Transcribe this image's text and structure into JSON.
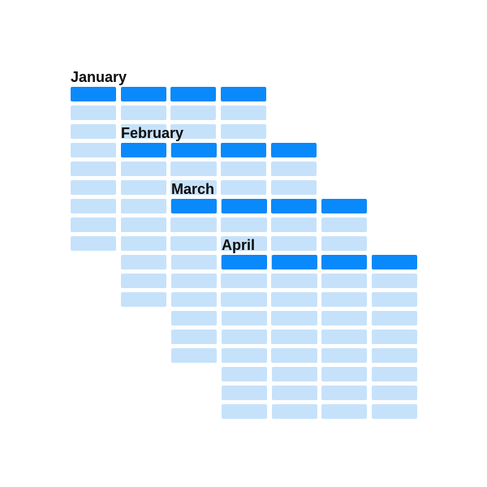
{
  "colors": {
    "header": "#0a89fb",
    "body": "#c6e2fb",
    "text": "#0b0b0b",
    "background": "#ffffff"
  },
  "months": [
    {
      "label": "January",
      "cols": 4,
      "body_rows": 8
    },
    {
      "label": "February",
      "cols": 4,
      "body_rows": 8
    },
    {
      "label": "March",
      "cols": 4,
      "body_rows": 8
    },
    {
      "label": "April",
      "cols": 4,
      "body_rows": 8
    }
  ]
}
